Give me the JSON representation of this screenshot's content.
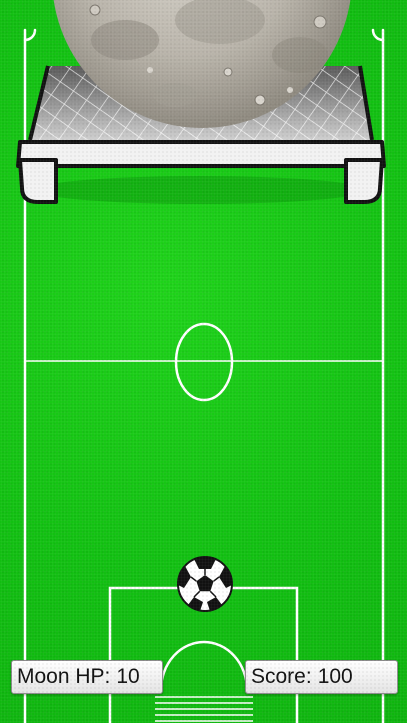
{
  "hud": {
    "moon_hp_label": "Moon HP:",
    "moon_hp_value": "10",
    "score_label": "Score:",
    "score_value": "100"
  },
  "colors": {
    "pitch": "#12c012",
    "lines": "#ffffff",
    "goal_frame": "#f2f2f2"
  },
  "icons": {
    "moon": "moon-icon",
    "ball": "soccer-ball-icon"
  }
}
